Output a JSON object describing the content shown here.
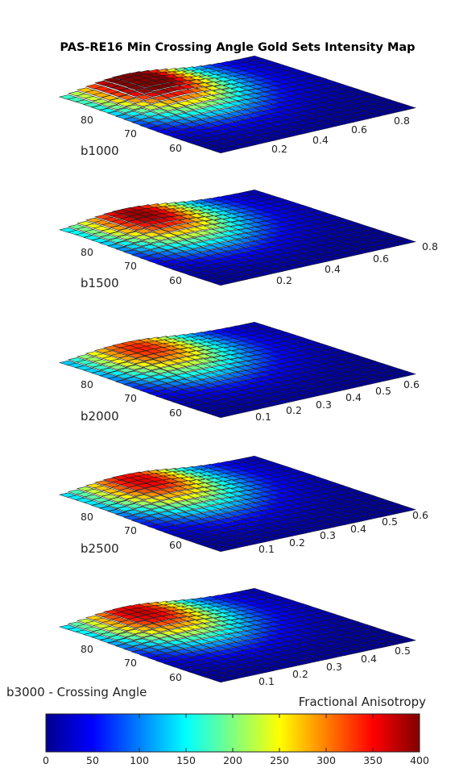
{
  "chart_data": {
    "type": "surface3d",
    "title": "PAS-RE16 Min Crossing Angle Gold Sets Intensity Map",
    "xlabel": "Crossing Angle",
    "ylabel": "Fractional Anisotropy",
    "colorbar": {
      "min": 0,
      "max": 400,
      "ticks": [
        "0",
        "50",
        "100",
        "150",
        "200",
        "250",
        "300",
        "350",
        "400"
      ],
      "colormap": "jet"
    },
    "panels": [
      {
        "label": "b1000",
        "angle_ticks": [
          "80",
          "70",
          "60"
        ],
        "fa_ticks": [
          "0.2",
          "0.4",
          "0.6",
          "0.8"
        ],
        "fa_range": [
          0,
          0.9
        ],
        "peak": {
          "angle": 80,
          "fa": 0.24,
          "intensity": 395
        }
      },
      {
        "label": "b1500",
        "angle_ticks": [
          "80",
          "70",
          "60"
        ],
        "fa_ticks": [
          "0.2",
          "0.4",
          "0.6",
          "0.8"
        ],
        "fa_range": [
          0,
          0.9
        ],
        "peak": {
          "angle": 80,
          "fa": 0.24,
          "intensity": 340
        }
      },
      {
        "label": "b2000",
        "angle_ticks": [
          "80",
          "70",
          "60"
        ],
        "fa_ticks": [
          "0.1",
          "0.2",
          "0.3",
          "0.4",
          "0.5",
          "0.6"
        ],
        "fa_range": [
          0,
          0.65
        ],
        "peak": {
          "angle": 80,
          "fa": 0.22,
          "intensity": 285
        }
      },
      {
        "label": "b2500",
        "angle_ticks": [
          "80",
          "70",
          "60"
        ],
        "fa_ticks": [
          "0.1",
          "0.2",
          "0.3",
          "0.4",
          "0.5",
          "0.6"
        ],
        "fa_range": [
          0,
          0.65
        ],
        "peak": {
          "angle": 80,
          "fa": 0.22,
          "intensity": 310
        }
      },
      {
        "label": "b3000 - Crossing Angle",
        "angle_ticks": [
          "80",
          "70",
          "60"
        ],
        "fa_ticks": [
          "0.1",
          "0.2",
          "0.3",
          "0.4",
          "0.5"
        ],
        "fa_range": [
          0,
          0.55
        ],
        "peak": {
          "angle": 80,
          "fa": 0.2,
          "intensity": 320
        }
      }
    ]
  }
}
